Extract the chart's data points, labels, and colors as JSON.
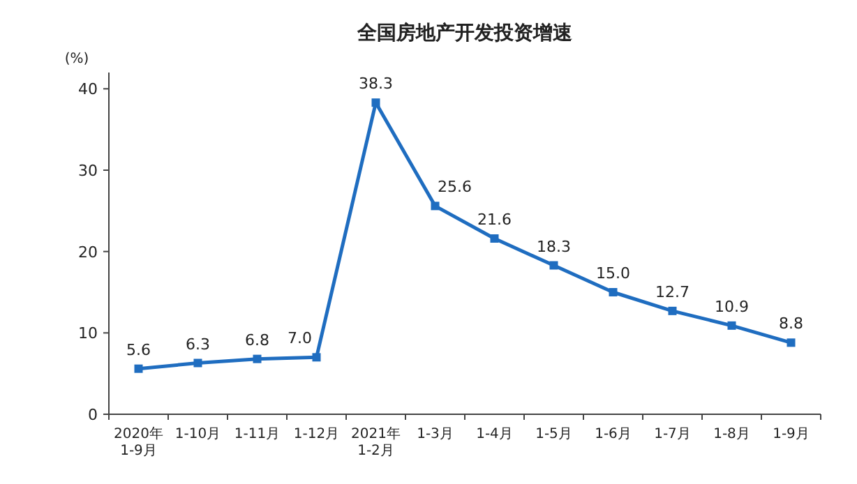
{
  "chart_data": {
    "type": "line",
    "title": "全国房地产开发投资增速",
    "ylabel": "(%)",
    "categories": [
      "2020年\n1-9月",
      "1-10月",
      "1-11月",
      "1-12月",
      "2021年\n1-2月",
      "1-3月",
      "1-4月",
      "1-5月",
      "1-6月",
      "1-7月",
      "1-8月",
      "1-9月"
    ],
    "series": [
      {
        "color": "#1f6dc0",
        "values": [
          5.6,
          6.3,
          6.8,
          7.0,
          38.3,
          25.6,
          21.6,
          18.3,
          15.0,
          12.7,
          10.9,
          8.8
        ]
      }
    ],
    "ylim": [
      0,
      42
    ],
    "yticks": [
      0,
      10,
      20,
      30,
      40
    ],
    "value_labels": [
      "5.6",
      "6.3",
      "6.8",
      "7.0",
      "38.3",
      "25.6",
      "21.6",
      "18.3",
      "15.0",
      "12.7",
      "10.9",
      "8.8"
    ],
    "marker": "square",
    "line_style": "solid",
    "grid": false
  }
}
